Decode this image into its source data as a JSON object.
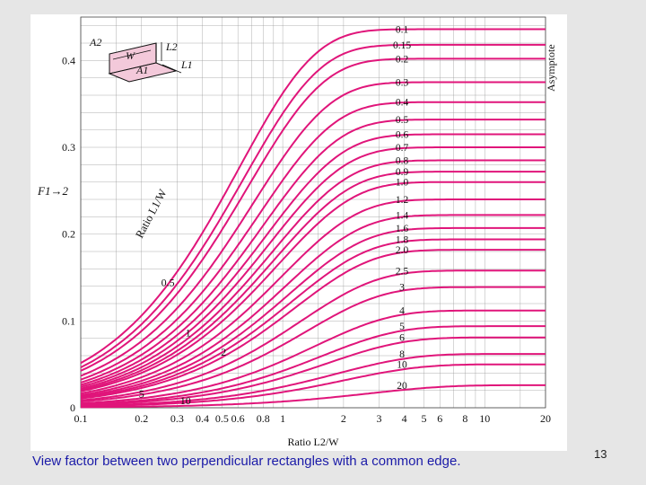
{
  "slide": {
    "caption": "View factor between two perpendicular rectangles with a common edge.",
    "number": "13"
  },
  "colors": {
    "curve": "#e0157a",
    "grid": "#9a9a9a",
    "text": "#111111",
    "slide_background": "#e6e6e6",
    "caption": "#1a1aa8"
  },
  "inset": {
    "labels": [
      "A2",
      "L2",
      "W",
      "L1",
      "A1"
    ]
  },
  "chart_data": {
    "type": "line",
    "title": "",
    "xlabel": "Ratio L2/W",
    "ylabel": "F1→2",
    "x_scale": "log",
    "xlim": [
      0.1,
      20
    ],
    "ylim": [
      0,
      0.45
    ],
    "x_ticks": [
      "0.1",
      "0.2",
      "0.3",
      "0.4",
      "0.5",
      "0.6",
      "0.8",
      "1",
      "2",
      "3",
      "4",
      "5",
      "6",
      "8",
      "10",
      "20"
    ],
    "y_ticks": [
      "0",
      "0.1",
      "0.2",
      "0.3",
      "0.4"
    ],
    "grid": true,
    "curve_family_label": "Ratio L1/W",
    "asymptote_label": "Asymptote",
    "series": [
      {
        "name": "0.1",
        "asymptote": 0.436
      },
      {
        "name": "0.15",
        "asymptote": 0.418
      },
      {
        "name": "0.2",
        "asymptote": 0.402
      },
      {
        "name": "0.3",
        "asymptote": 0.375
      },
      {
        "name": "0.4",
        "asymptote": 0.352
      },
      {
        "name": "0.5",
        "asymptote": 0.332
      },
      {
        "name": "0.6",
        "asymptote": 0.315
      },
      {
        "name": "0.7",
        "asymptote": 0.3
      },
      {
        "name": "0.8",
        "asymptote": 0.285
      },
      {
        "name": "0.9",
        "asymptote": 0.272
      },
      {
        "name": "1.0",
        "asymptote": 0.26
      },
      {
        "name": "1.2",
        "asymptote": 0.24
      },
      {
        "name": "1.4",
        "asymptote": 0.222
      },
      {
        "name": "1.6",
        "asymptote": 0.207
      },
      {
        "name": "1.8",
        "asymptote": 0.194
      },
      {
        "name": "2.0",
        "asymptote": 0.182
      },
      {
        "name": "2.5",
        "asymptote": 0.158
      },
      {
        "name": "3",
        "asymptote": 0.139
      },
      {
        "name": "4",
        "asymptote": 0.112
      },
      {
        "name": "5",
        "asymptote": 0.094
      },
      {
        "name": "6",
        "asymptote": 0.081
      },
      {
        "name": "8",
        "asymptote": 0.062
      },
      {
        "name": "10",
        "asymptote": 0.05
      },
      {
        "name": "20",
        "asymptote": 0.026
      }
    ],
    "annotations": [
      "0.5",
      "1",
      "2",
      "5",
      "10"
    ]
  }
}
